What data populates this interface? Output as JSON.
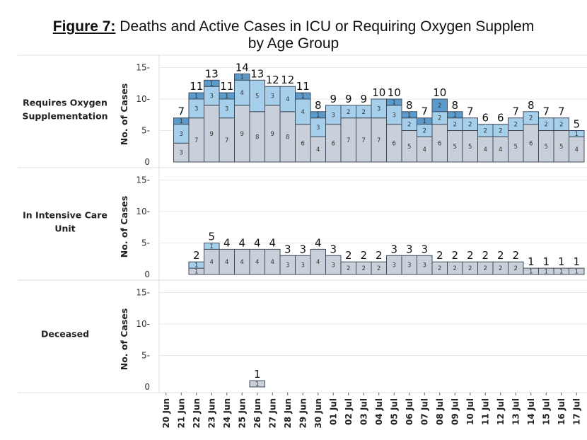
{
  "title": {
    "prefix": "Figure 7:",
    "text": " Deaths and Active Cases in ICU or Requiring Oxygen Supplem",
    "line2": "by Age Group"
  },
  "colors": {
    "seg0": "#c9d0da",
    "seg1": "#a6cfec",
    "seg2": "#5a9bcb",
    "edge": "#3f4b5a",
    "grid": "#e9e9e9"
  },
  "chart_data": {
    "type": "bar",
    "stacked": true,
    "title": "Figure 7: Deaths and Active Cases in ICU or Requiring Oxygen Supplem by Age Group",
    "ylabel": "No. of Cases",
    "ylim": [
      0,
      16
    ],
    "yticks": [
      "0",
      "5-",
      "10-",
      "15-"
    ],
    "grid": true,
    "categories": [
      "20 Jun",
      "21 Jun",
      "22 Jun",
      "23 Jun",
      "24 Jun",
      "25 Jun",
      "26 Jun",
      "27 Jun",
      "28 Jun",
      "29 Jun",
      "30 Jun",
      "01 Jul",
      "02 Jul",
      "03 Jul",
      "04 Jul",
      "05 Jul",
      "06 Jul",
      "07 Jul",
      "08 Jul",
      "09 Jul",
      "10 Jul",
      "11 Jul",
      "12 Jul",
      "13 Jul",
      "14 Jul",
      "15 Jul",
      "16 Jul",
      "17 Jul"
    ],
    "panels": [
      {
        "name": "Requires Oxygen Supplementation",
        "label_lines": [
          "Requires Oxygen",
          "Supplementation"
        ],
        "segments": [
          [
            0,
            0,
            0
          ],
          [
            3,
            3,
            1
          ],
          [
            7,
            3,
            1
          ],
          [
            9,
            3,
            1
          ],
          [
            7,
            3,
            1
          ],
          [
            9,
            4,
            1
          ],
          [
            8,
            5,
            0
          ],
          [
            9,
            3,
            0
          ],
          [
            8,
            4,
            0
          ],
          [
            6,
            4,
            1
          ],
          [
            4,
            3,
            1
          ],
          [
            6,
            3,
            0
          ],
          [
            7,
            2,
            0
          ],
          [
            7,
            2,
            0
          ],
          [
            7,
            3,
            0
          ],
          [
            6,
            3,
            1
          ],
          [
            5,
            2,
            1
          ],
          [
            4,
            2,
            1
          ],
          [
            6,
            2,
            2
          ],
          [
            5,
            2,
            1
          ],
          [
            5,
            2,
            0
          ],
          [
            4,
            2,
            0
          ],
          [
            4,
            2,
            0
          ],
          [
            5,
            2,
            0
          ],
          [
            6,
            2,
            0
          ],
          [
            5,
            2,
            0
          ],
          [
            5,
            2,
            0
          ],
          [
            4,
            1,
            0
          ]
        ],
        "totals": [
          0,
          7,
          11,
          13,
          11,
          14,
          13,
          12,
          12,
          11,
          8,
          9,
          9,
          9,
          10,
          10,
          8,
          7,
          10,
          8,
          7,
          6,
          6,
          7,
          8,
          7,
          7,
          5
        ]
      },
      {
        "name": "In Intensive Care Unit",
        "label_lines": [
          "In Intensive Care",
          "Unit"
        ],
        "segments": [
          [
            0,
            0,
            0
          ],
          [
            0,
            0,
            0
          ],
          [
            1,
            1,
            0
          ],
          [
            4,
            1,
            0
          ],
          [
            4,
            0,
            0
          ],
          [
            4,
            0,
            0
          ],
          [
            4,
            0,
            0
          ],
          [
            4,
            0,
            0
          ],
          [
            3,
            0,
            0
          ],
          [
            3,
            0,
            0
          ],
          [
            4,
            0,
            0
          ],
          [
            3,
            0,
            0
          ],
          [
            2,
            0,
            0
          ],
          [
            2,
            0,
            0
          ],
          [
            2,
            0,
            0
          ],
          [
            3,
            0,
            0
          ],
          [
            3,
            0,
            0
          ],
          [
            3,
            0,
            0
          ],
          [
            2,
            0,
            0
          ],
          [
            2,
            0,
            0
          ],
          [
            2,
            0,
            0
          ],
          [
            2,
            0,
            0
          ],
          [
            2,
            0,
            0
          ],
          [
            2,
            0,
            0
          ],
          [
            1,
            0,
            0
          ],
          [
            1,
            0,
            0
          ],
          [
            1,
            0,
            0
          ],
          [
            1,
            0,
            0
          ]
        ],
        "totals": [
          0,
          0,
          2,
          5,
          4,
          4,
          4,
          4,
          3,
          3,
          4,
          3,
          2,
          2,
          2,
          3,
          3,
          3,
          2,
          2,
          2,
          2,
          2,
          2,
          1,
          1,
          1,
          1
        ]
      },
      {
        "name": "Deceased",
        "label_lines": [
          "Deceased"
        ],
        "segments": [
          [
            0,
            0,
            0
          ],
          [
            0,
            0,
            0
          ],
          [
            0,
            0,
            0
          ],
          [
            0,
            0,
            0
          ],
          [
            0,
            0,
            0
          ],
          [
            0,
            0,
            0
          ],
          [
            1,
            0,
            0
          ],
          [
            0,
            0,
            0
          ],
          [
            0,
            0,
            0
          ],
          [
            0,
            0,
            0
          ],
          [
            0,
            0,
            0
          ],
          [
            0,
            0,
            0
          ],
          [
            0,
            0,
            0
          ],
          [
            0,
            0,
            0
          ],
          [
            0,
            0,
            0
          ],
          [
            0,
            0,
            0
          ],
          [
            0,
            0,
            0
          ],
          [
            0,
            0,
            0
          ],
          [
            0,
            0,
            0
          ],
          [
            0,
            0,
            0
          ],
          [
            0,
            0,
            0
          ],
          [
            0,
            0,
            0
          ],
          [
            0,
            0,
            0
          ],
          [
            0,
            0,
            0
          ],
          [
            0,
            0,
            0
          ],
          [
            0,
            0,
            0
          ],
          [
            0,
            0,
            0
          ],
          [
            0,
            0,
            0
          ]
        ],
        "totals": [
          0,
          0,
          0,
          0,
          0,
          0,
          1,
          0,
          0,
          0,
          0,
          0,
          0,
          0,
          0,
          0,
          0,
          0,
          0,
          0,
          0,
          0,
          0,
          0,
          0,
          0,
          0,
          0
        ]
      }
    ]
  }
}
